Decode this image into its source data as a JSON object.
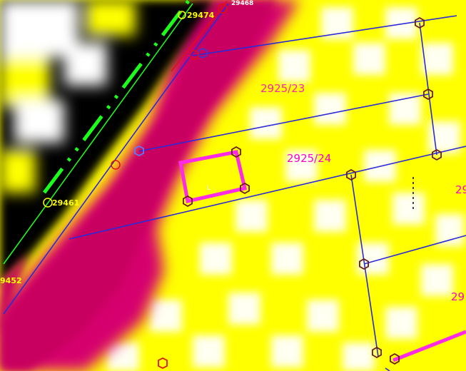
{
  "colors": {
    "background_yellow": "#ffff00",
    "raster_white": "#ffffff",
    "raster_dark": "#000000",
    "raster_magenta": "#d6006e",
    "parcel_line": "#2a2ad8",
    "parcel_label": "#ff00c8",
    "rail_line": "#1bff1b",
    "control_point_label": "#ffff00",
    "vertex_marker": "#6b1b1b",
    "red_marker": "#e01010",
    "blue_marker": "#5a7cff",
    "building_outline": "#ff2ae6"
  },
  "parcel_labels": [
    "2925/23",
    "2925/24",
    "29",
    "29"
  ],
  "control_points": [
    "29474",
    "29461",
    "9452",
    "29468"
  ],
  "building_label": "L",
  "icons": {
    "vertex": "hexagon-vertex-icon",
    "control_point": "circle-control-point-icon"
  }
}
